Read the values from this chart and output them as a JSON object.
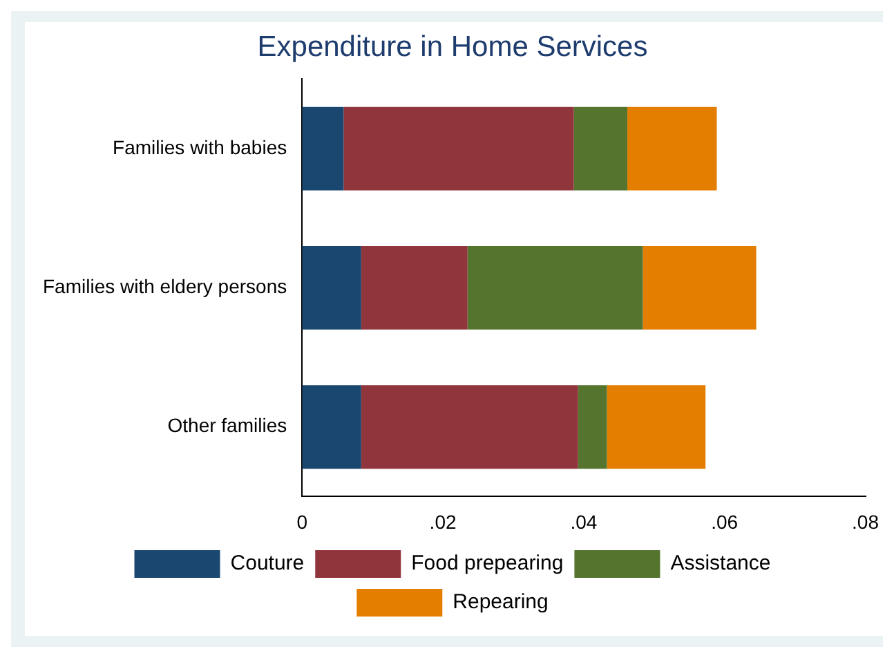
{
  "chart_data": {
    "type": "bar",
    "title": "Expenditure in Home Services",
    "orientation": "horizontal",
    "stacked": true,
    "categories": [
      "Families with babies",
      "Families with eldery persons",
      "Other families"
    ],
    "series": [
      {
        "name": "Couture",
        "color": "#1a476f",
        "values": [
          0.0059,
          0.0084,
          0.0084
        ]
      },
      {
        "name": "Food prepearing",
        "color": "#90353b",
        "values": [
          0.0327,
          0.0151,
          0.0308
        ]
      },
      {
        "name": "Assistance",
        "color": "#55752f",
        "values": [
          0.0076,
          0.0249,
          0.0041
        ]
      },
      {
        "name": "Repearing",
        "color": "#e37e00",
        "values": [
          0.0127,
          0.0161,
          0.014
        ]
      }
    ],
    "xlim": [
      0,
      0.08
    ],
    "xticks": [
      {
        "value": 0,
        "label": "0"
      },
      {
        "value": 0.02,
        "label": ".02"
      },
      {
        "value": 0.04,
        "label": ".04"
      },
      {
        "value": 0.06,
        "label": ".06"
      },
      {
        "value": 0.08,
        "label": ".08"
      }
    ],
    "grid": false,
    "legend": "bottom"
  }
}
